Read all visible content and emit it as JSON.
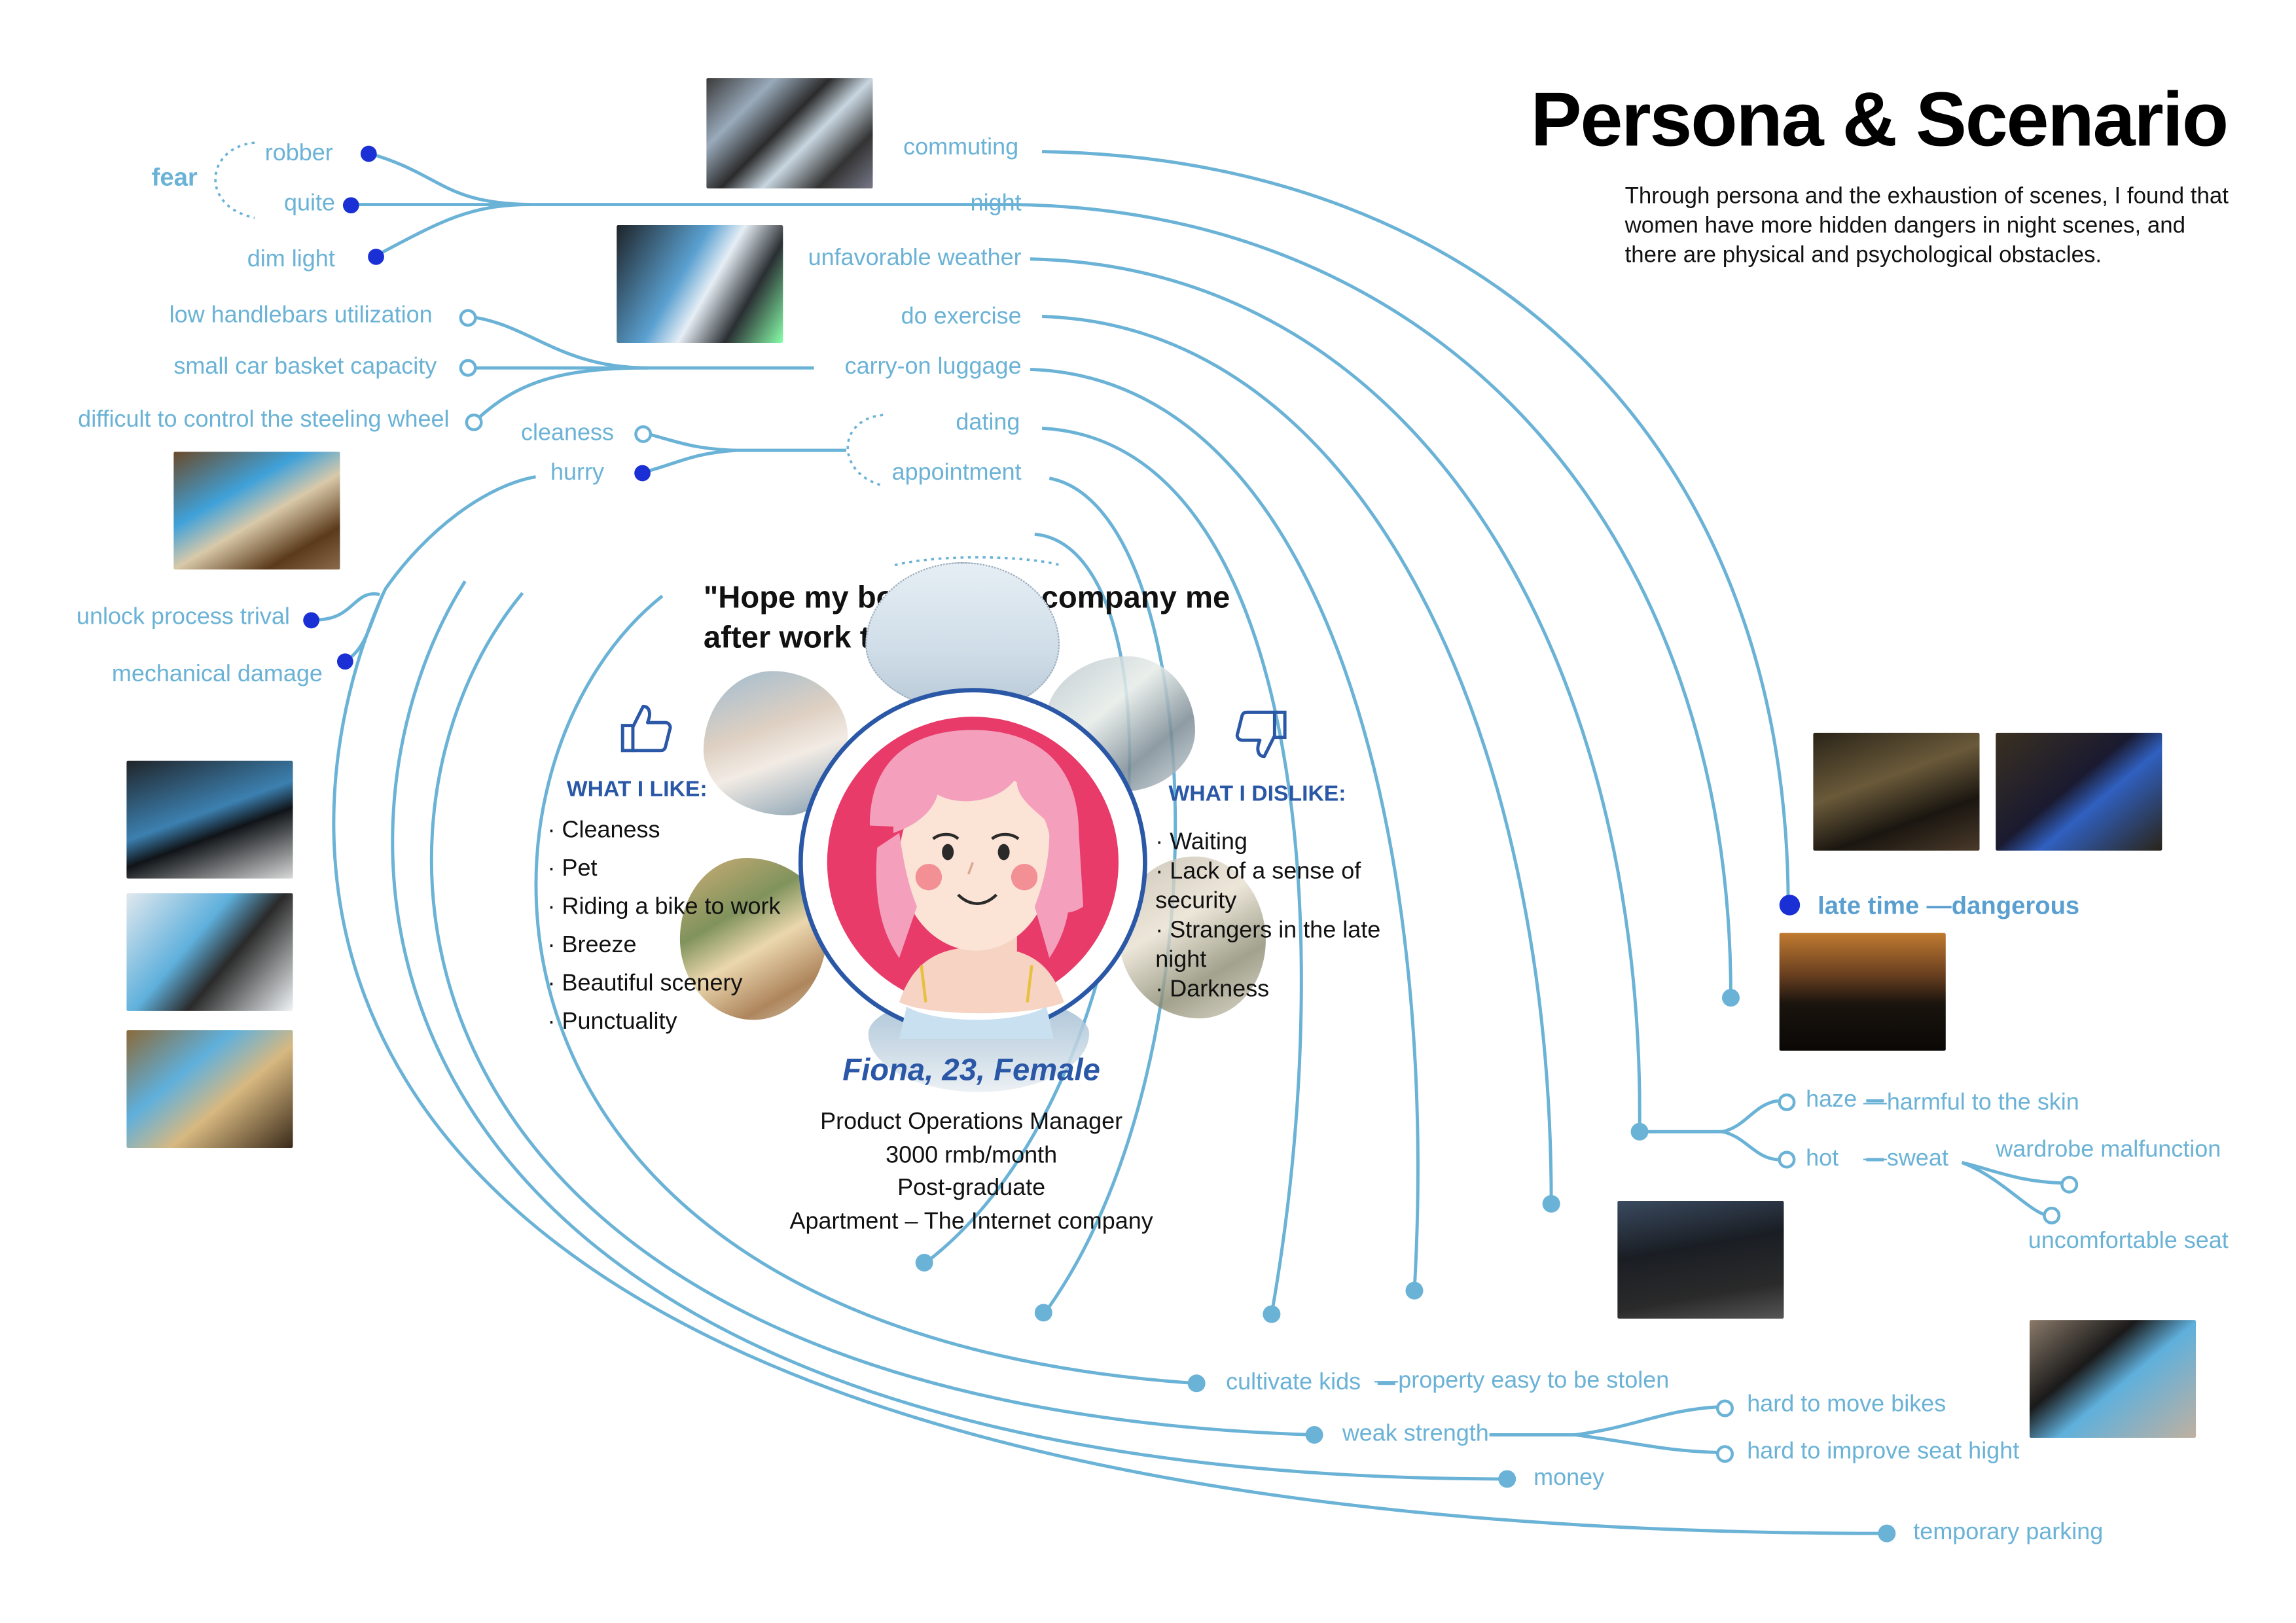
{
  "header": {
    "title": "Persona & Scenario",
    "intro": "Through persona and the exhaustion of scenes, I found that women have more hidden dangers in night scenes, and there are physical and psychological obstacles."
  },
  "persona": {
    "quote": "\"Hope my boyfriend accompany me after work to go home!\"",
    "like_title": "WHAT I LIKE:",
    "likes": [
      "· Cleaness",
      "· Pet",
      "· Riding a bike to work",
      "· Breeze",
      "· Beautiful scenery",
      "· Punctuality"
    ],
    "dislike_title": "WHAT I DISLIKE:",
    "dislikes": [
      "· Waiting",
      "· Lack of a sense of security",
      "· Strangers in the late night",
      "· Darkness"
    ],
    "name": "Fiona, 23, Female",
    "info": [
      "Product Operations Manager",
      "3000 rmb/month",
      "Post-graduate",
      "Apartment – The Internet company"
    ]
  },
  "left_branch": {
    "fear": "fear",
    "fear_items": [
      "robber",
      "quite",
      "dim light"
    ],
    "luggage_items": [
      "low handlebars utilization",
      "small car basket capacity",
      "difficult to control the steeling wheel"
    ],
    "date_items": [
      "cleaness",
      "hurry"
    ],
    "unlock_items": [
      "unlock process trival",
      "mechanical damage"
    ]
  },
  "scenarios": {
    "right_column": [
      "commuting",
      "night",
      "unfavorable weather",
      "do exercise",
      "carry-on luggage",
      "dating",
      "appointment"
    ],
    "late_time": "late time",
    "dangerous": "—dangerous",
    "haze": "haze",
    "haze_note": "—harmful to the skin",
    "hot": "hot",
    "hot_note": "—sweat",
    "wardrobe": "wardrobe malfunction",
    "seat": "uncomfortable seat",
    "kids": "cultivate kids",
    "kids_note": "—property easy to be stolen",
    "weak": "weak strength",
    "move": "hard to move bikes",
    "improve": "hard to improve seat hight",
    "money": "money",
    "parking": "temporary parking"
  },
  "colors": {
    "line": "#6ab2d6",
    "accent_dot": "#1a2fd4",
    "navy": "#2a57a6",
    "avatar_ring": "#2a57a6",
    "avatar_bg": "#e83b6a"
  },
  "icons": [
    "thumbs-up-icon",
    "thumbs-down-icon"
  ]
}
